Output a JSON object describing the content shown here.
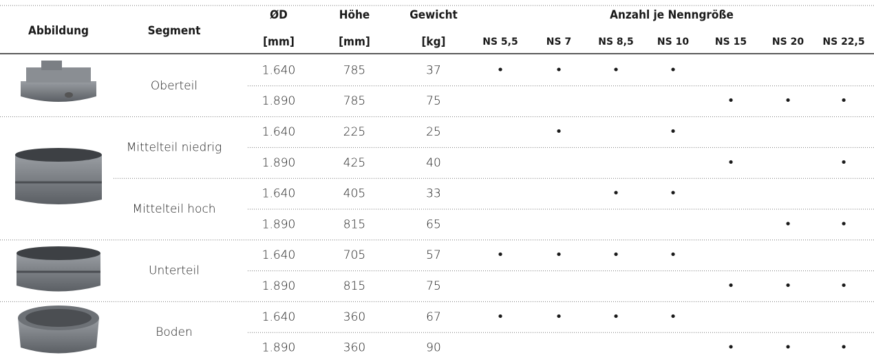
{
  "headers": {
    "image": "Abbildung",
    "segment": "Segment",
    "diameter": "ØD",
    "diameter_unit": "[mm]",
    "height": "Höhe",
    "height_unit": "[mm]",
    "weight": "Gewicht",
    "weight_unit": "[kg]",
    "group": "Anzahl je Nenngröße",
    "sizes": [
      "NS 5,5",
      "NS 7",
      "NS 8,5",
      "NS 10",
      "NS 15",
      "NS 20",
      "NS 22,5"
    ]
  },
  "segments": [
    {
      "name": "Oberteil",
      "rows": [
        {
          "diameter": "1.640",
          "height": 785,
          "weight": 37,
          "marks": [
            "•",
            "•",
            "•",
            "•",
            null,
            null,
            null
          ]
        },
        {
          "diameter": "1.890",
          "height": 785,
          "weight": 75,
          "marks": [
            null,
            null,
            null,
            null,
            "•",
            "•",
            "•"
          ]
        }
      ]
    },
    {
      "name": "Mittelteil niedrig",
      "rows": [
        {
          "diameter": "1.640",
          "height": 225,
          "weight": 25,
          "marks": [
            null,
            "•",
            null,
            "•",
            null,
            null,
            null
          ]
        },
        {
          "diameter": "1.890",
          "height": 425,
          "weight": 40,
          "marks": [
            null,
            null,
            null,
            null,
            "•",
            null,
            "•"
          ]
        }
      ]
    },
    {
      "name": "Mittelteil hoch",
      "rows": [
        {
          "diameter": "1.640",
          "height": 405,
          "weight": 33,
          "marks": [
            null,
            null,
            "•",
            "•",
            null,
            null,
            null
          ]
        },
        {
          "diameter": "1.890",
          "height": 815,
          "weight": 65,
          "marks": [
            null,
            null,
            null,
            null,
            null,
            "•",
            "•"
          ]
        }
      ]
    },
    {
      "name": "Unterteil",
      "rows": [
        {
          "diameter": "1.640",
          "height": 705,
          "weight": 57,
          "marks": [
            "•",
            "•",
            "•",
            "•",
            null,
            null,
            null
          ]
        },
        {
          "diameter": "1.890",
          "height": 815,
          "weight": 75,
          "marks": [
            null,
            null,
            null,
            null,
            "•",
            "•",
            "•"
          ]
        }
      ]
    },
    {
      "name": "Boden",
      "rows": [
        {
          "diameter": "1.640",
          "height": 360,
          "weight": 67,
          "marks": [
            "•",
            "•",
            "•",
            "•",
            null,
            null,
            null
          ]
        },
        {
          "diameter": "1.890",
          "height": 360,
          "weight": 90,
          "marks": [
            null,
            null,
            null,
            null,
            "•",
            "•",
            "•"
          ]
        }
      ]
    }
  ]
}
